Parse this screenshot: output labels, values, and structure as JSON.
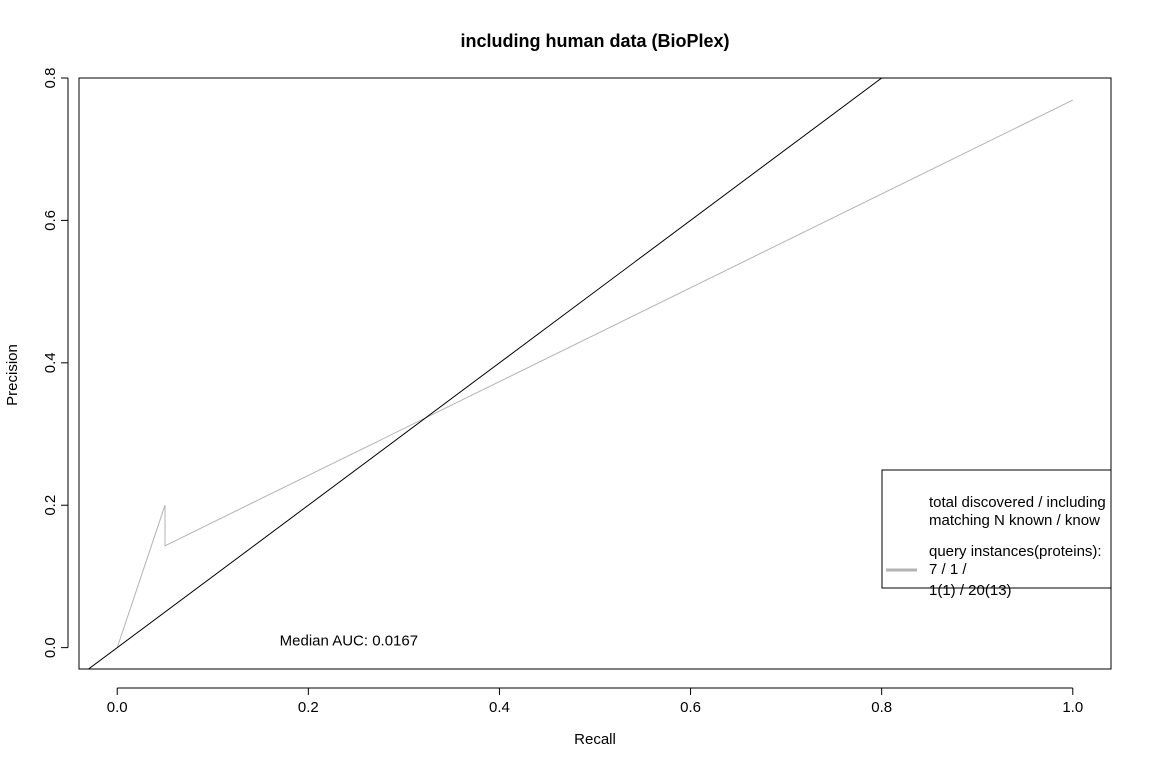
{
  "chart_data": {
    "type": "line",
    "title": "including human data (BioPlex)",
    "xlabel": "Recall",
    "ylabel": "Precision",
    "xlim": [
      -0.04,
      1.04
    ],
    "ylim": [
      -0.03,
      0.8
    ],
    "xticks": [
      0.0,
      0.2,
      0.4,
      0.6,
      0.8,
      1.0
    ],
    "xtick_labels": [
      "0.0",
      "0.2",
      "0.4",
      "0.6",
      "0.8",
      "1.0"
    ],
    "yticks": [
      0.0,
      0.2,
      0.4,
      0.6,
      0.8
    ],
    "ytick_labels": [
      "0.0",
      "0.2",
      "0.4",
      "0.6",
      "0.8"
    ],
    "grid": false,
    "series": [
      {
        "color": "#b3b3b3",
        "x": [
          0.0,
          0.05,
          0.05,
          1.0
        ],
        "y": [
          0.0,
          0.2,
          0.143,
          0.769
        ]
      }
    ],
    "reference_line": {
      "intercept": 0,
      "slope": 1,
      "color": "#000000"
    },
    "annotation": {
      "text": "Median AUC: 0.0167",
      "x": 0.17,
      "y": 0.01
    },
    "legend": {
      "position": "bottom-right",
      "header_lines": [
        "total discovered / including",
        "matching N known / know"
      ],
      "entry_lines": [
        "query instances(proteins):",
        "7 / 1 /",
        "1(1) / 20(13)"
      ],
      "entry_color": "#b3b3b3"
    }
  }
}
